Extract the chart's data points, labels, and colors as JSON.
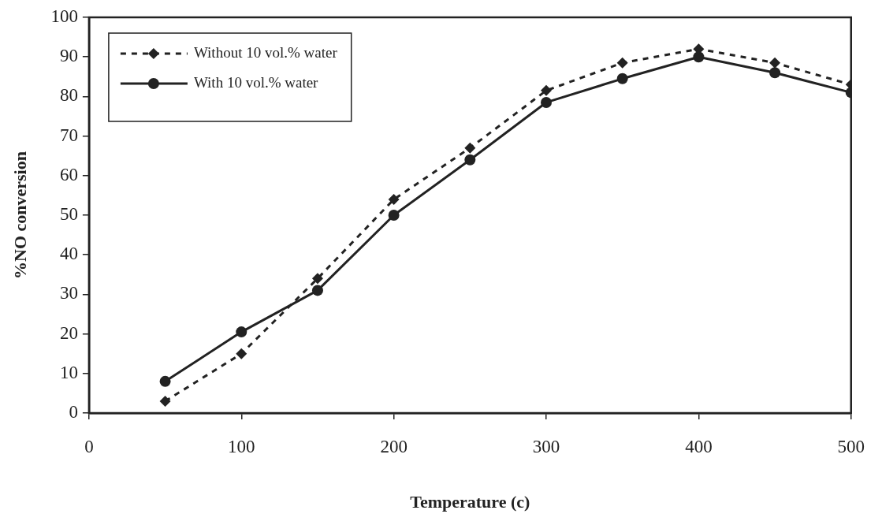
{
  "chart_data": {
    "type": "line",
    "xlabel": "Temperature (c)",
    "ylabel": "%NO conversion",
    "x": [
      50,
      100,
      150,
      200,
      250,
      300,
      350,
      400,
      450,
      500
    ],
    "series": [
      {
        "name": "Without 10 vol.% water",
        "color": "#222222",
        "marker": "diamond",
        "line_style": "dashed",
        "values": [
          3,
          15,
          34,
          54,
          67,
          81.5,
          88.5,
          92,
          88.5,
          83
        ]
      },
      {
        "name": "With 10 vol.% water",
        "color": "#222222",
        "marker": "circle",
        "line_style": "solid",
        "values": [
          8,
          20.5,
          31,
          50,
          64,
          78.5,
          84.5,
          90,
          86,
          81
        ]
      }
    ],
    "xlim": [
      0,
      500
    ],
    "xticks": [
      0,
      100,
      200,
      300,
      400,
      500
    ],
    "ylim": [
      0,
      100
    ],
    "yticks": [
      0,
      10,
      20,
      30,
      40,
      50,
      60,
      70,
      80,
      90,
      100
    ],
    "grid": false,
    "legend": "top left"
  }
}
